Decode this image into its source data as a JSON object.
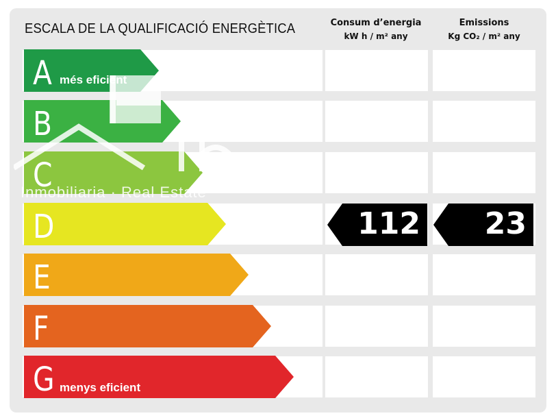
{
  "header": {
    "title": "ESCALA DE LA QUALIFICACIÓ ENERGÈTICA",
    "consumption_title": "Consum d’energia",
    "consumption_unit": "kW h / m² any",
    "emissions_title": "Emissions",
    "emissions_unit": "Kg CO₂ / m² any"
  },
  "grades": [
    {
      "letter": "A",
      "note": "més eficient",
      "color": "#1f9a47"
    },
    {
      "letter": "B",
      "note": "",
      "color": "#3bb143"
    },
    {
      "letter": "C",
      "note": "",
      "color": "#8cc63f"
    },
    {
      "letter": "D",
      "note": "",
      "color": "#e6e621"
    },
    {
      "letter": "E",
      "note": "",
      "color": "#f0a818"
    },
    {
      "letter": "F",
      "note": "",
      "color": "#e4641f"
    },
    {
      "letter": "G",
      "note": "menys eficient",
      "color": "#e1262b"
    }
  ],
  "rating": {
    "letter": "D",
    "consumption_value": "112",
    "emissions_value": "23"
  },
  "watermark": {
    "text": "Inmobiliaria · Real Estate"
  }
}
